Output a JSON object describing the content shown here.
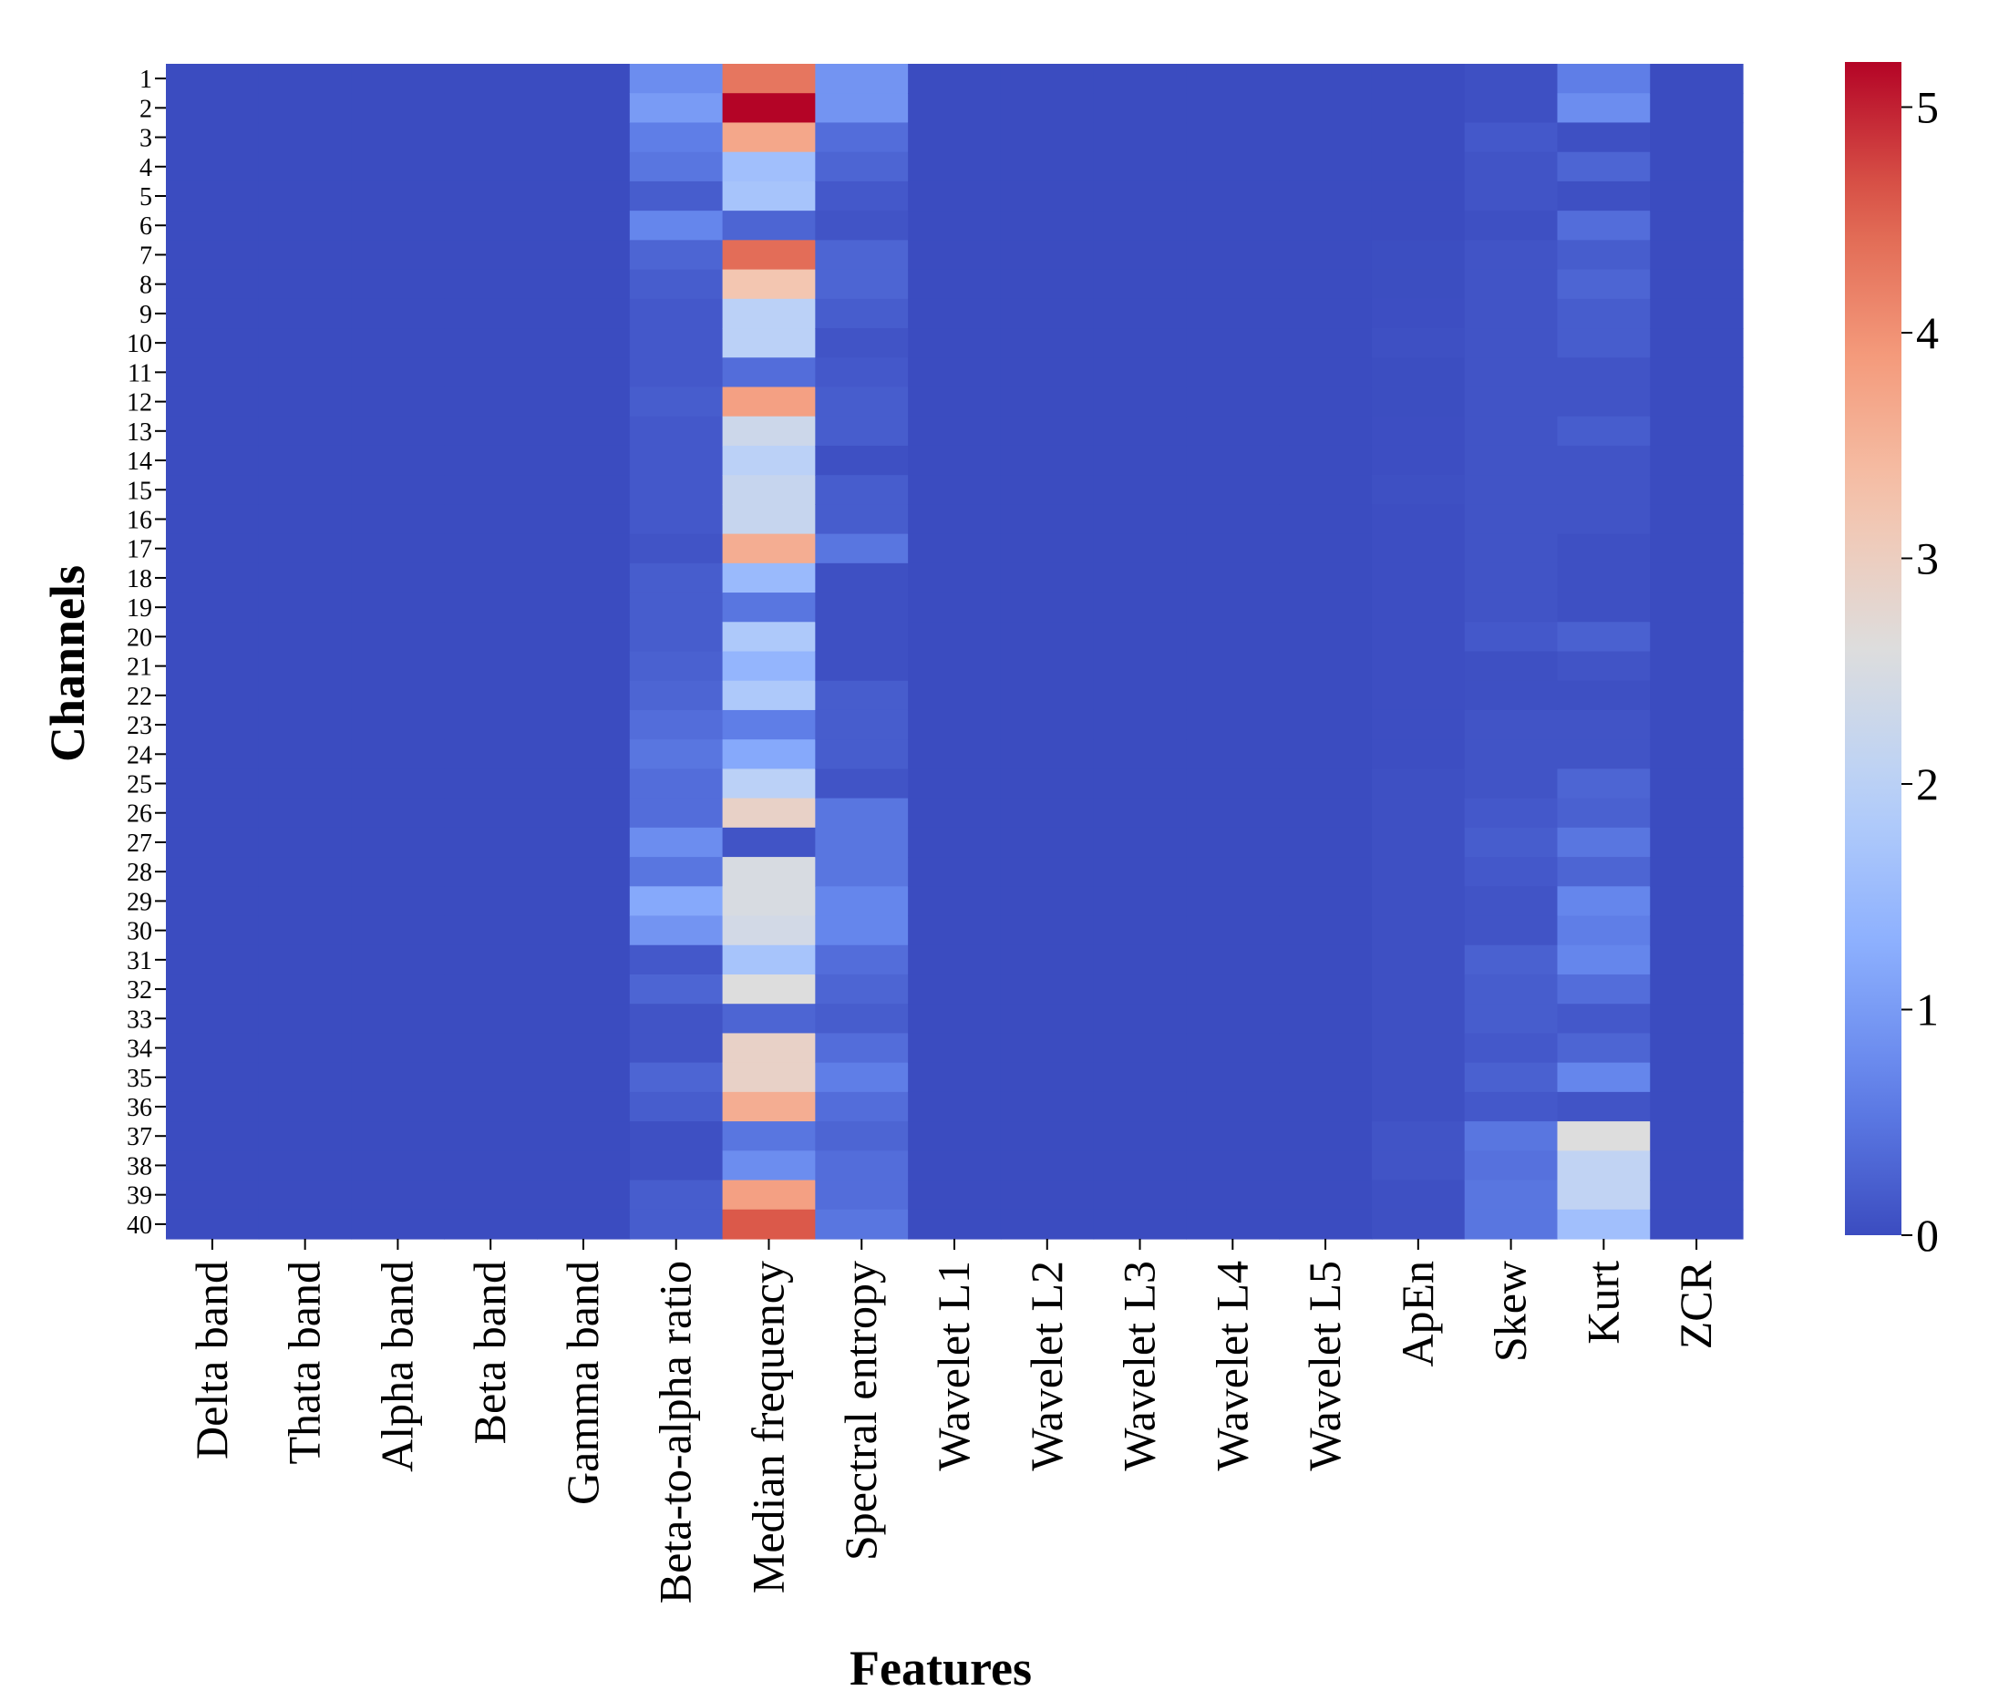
{
  "chart_data": {
    "type": "heatmap",
    "title": "",
    "xlabel": "Features",
    "ylabel": "Channels",
    "x": [
      "Delta band",
      "Thata band",
      "Alpha band",
      "Beta band",
      "Gamma band",
      "Beta-to-alpha ratio",
      "Median frequency",
      "Spectral entropy",
      "Wavelet L1",
      "Wavelet L2",
      "Wavelet L3",
      "Wavelet L4",
      "Wavelet L5",
      "ApEn",
      "Skew",
      "Kurt",
      "ZCR"
    ],
    "y": [
      "1",
      "2",
      "3",
      "4",
      "5",
      "6",
      "7",
      "8",
      "9",
      "10",
      "11",
      "12",
      "13",
      "14",
      "15",
      "16",
      "17",
      "18",
      "19",
      "20",
      "21",
      "22",
      "23",
      "24",
      "25",
      "26",
      "27",
      "28",
      "29",
      "30",
      "31",
      "32",
      "33",
      "34",
      "35",
      "36",
      "37",
      "38",
      "39",
      "40"
    ],
    "colormap": "coolwarm",
    "vlim": [
      0,
      5.2
    ],
    "colorbar_ticks": [
      0,
      1,
      2,
      3,
      4,
      5
    ],
    "grid": false,
    "columns": [
      {
        "name": "Delta band",
        "values": [
          0,
          0,
          0,
          0,
          0,
          0,
          0,
          0,
          0,
          0,
          0,
          0,
          0,
          0,
          0,
          0,
          0,
          0,
          0,
          0,
          0,
          0,
          0,
          0,
          0,
          0,
          0,
          0,
          0,
          0,
          0,
          0,
          0,
          0,
          0,
          0,
          0,
          0,
          0,
          0
        ]
      },
      {
        "name": "Thata band",
        "values": [
          0,
          0,
          0,
          0,
          0,
          0,
          0,
          0,
          0,
          0,
          0,
          0,
          0,
          0,
          0,
          0,
          0,
          0,
          0,
          0,
          0,
          0,
          0,
          0,
          0,
          0,
          0,
          0,
          0,
          0,
          0,
          0,
          0,
          0,
          0,
          0,
          0,
          0,
          0,
          0
        ]
      },
      {
        "name": "Alpha band",
        "values": [
          0,
          0,
          0,
          0,
          0,
          0,
          0,
          0,
          0,
          0,
          0,
          0,
          0,
          0,
          0,
          0,
          0,
          0,
          0,
          0,
          0,
          0,
          0,
          0,
          0,
          0,
          0,
          0,
          0,
          0,
          0,
          0,
          0,
          0,
          0,
          0,
          0,
          0,
          0,
          0
        ]
      },
      {
        "name": "Beta band",
        "values": [
          0,
          0,
          0,
          0,
          0,
          0,
          0,
          0,
          0,
          0,
          0,
          0,
          0,
          0,
          0,
          0,
          0,
          0,
          0,
          0,
          0,
          0,
          0,
          0,
          0,
          0,
          0,
          0,
          0,
          0,
          0,
          0,
          0,
          0,
          0,
          0,
          0,
          0,
          0,
          0
        ]
      },
      {
        "name": "Gamma band",
        "values": [
          0,
          0,
          0,
          0,
          0,
          0,
          0,
          0,
          0,
          0,
          0,
          0,
          0,
          0,
          0,
          0,
          0,
          0,
          0,
          0,
          0,
          0,
          0,
          0,
          0,
          0,
          0,
          0,
          0,
          0,
          0,
          0,
          0,
          0,
          0,
          0,
          0,
          0,
          0,
          0
        ]
      },
      {
        "name": "Beta-to-alpha ratio",
        "values": [
          0.8,
          1.0,
          0.6,
          0.5,
          0.2,
          0.7,
          0.3,
          0.2,
          0.15,
          0.15,
          0.15,
          0.2,
          0.15,
          0.15,
          0.15,
          0.15,
          0.1,
          0.2,
          0.2,
          0.2,
          0.25,
          0.3,
          0.4,
          0.5,
          0.4,
          0.4,
          0.8,
          0.5,
          1.2,
          0.9,
          0.15,
          0.3,
          0.1,
          0.1,
          0.3,
          0.2,
          0.05,
          0.05,
          0.2,
          0.2
        ]
      },
      {
        "name": "Median frequency",
        "values": [
          4.3,
          5.2,
          3.7,
          1.6,
          1.7,
          0.3,
          4.4,
          3.2,
          2.0,
          2.0,
          0.4,
          3.8,
          2.3,
          2.0,
          2.2,
          2.2,
          3.6,
          1.5,
          0.5,
          1.8,
          1.4,
          1.8,
          0.6,
          1.2,
          2.0,
          2.9,
          0.1,
          2.5,
          2.5,
          2.4,
          1.7,
          2.6,
          0.3,
          2.9,
          2.9,
          3.6,
          0.5,
          0.8,
          3.8,
          4.6
        ]
      },
      {
        "name": "Spectral entropy",
        "values": [
          0.9,
          0.9,
          0.4,
          0.3,
          0.15,
          0.1,
          0.3,
          0.3,
          0.2,
          0.1,
          0.15,
          0.2,
          0.2,
          0.05,
          0.2,
          0.2,
          0.5,
          0.05,
          0.05,
          0.05,
          0.05,
          0.2,
          0.2,
          0.2,
          0.1,
          0.5,
          0.5,
          0.5,
          0.7,
          0.7,
          0.4,
          0.3,
          0.2,
          0.4,
          0.6,
          0.4,
          0.3,
          0.4,
          0.4,
          0.5
        ]
      },
      {
        "name": "Wavelet L1",
        "values": [
          0,
          0,
          0,
          0,
          0,
          0,
          0,
          0,
          0,
          0,
          0,
          0,
          0,
          0,
          0,
          0,
          0,
          0,
          0,
          0,
          0,
          0,
          0,
          0,
          0,
          0,
          0,
          0,
          0,
          0,
          0,
          0,
          0,
          0,
          0,
          0,
          0,
          0,
          0,
          0
        ]
      },
      {
        "name": "Wavelet L2",
        "values": [
          0,
          0,
          0,
          0,
          0,
          0,
          0,
          0,
          0,
          0,
          0,
          0,
          0,
          0,
          0,
          0,
          0,
          0,
          0,
          0,
          0,
          0,
          0,
          0,
          0,
          0,
          0,
          0,
          0,
          0,
          0,
          0,
          0,
          0,
          0,
          0,
          0,
          0,
          0,
          0
        ]
      },
      {
        "name": "Wavelet L3",
        "values": [
          0,
          0,
          0,
          0,
          0,
          0,
          0,
          0,
          0,
          0,
          0,
          0,
          0,
          0,
          0,
          0,
          0,
          0,
          0,
          0,
          0,
          0,
          0,
          0,
          0,
          0,
          0,
          0,
          0,
          0,
          0,
          0,
          0,
          0,
          0,
          0,
          0,
          0,
          0,
          0
        ]
      },
      {
        "name": "Wavelet L4",
        "values": [
          0,
          0,
          0,
          0,
          0,
          0,
          0,
          0,
          0,
          0,
          0,
          0,
          0,
          0,
          0,
          0,
          0,
          0,
          0,
          0,
          0,
          0,
          0,
          0,
          0,
          0,
          0,
          0,
          0,
          0,
          0,
          0,
          0,
          0,
          0,
          0,
          0,
          0,
          0,
          0
        ]
      },
      {
        "name": "Wavelet L5",
        "values": [
          0,
          0,
          0,
          0,
          0,
          0,
          0,
          0,
          0,
          0,
          0,
          0,
          0,
          0,
          0,
          0,
          0,
          0,
          0,
          0,
          0,
          0,
          0,
          0,
          0,
          0,
          0,
          0,
          0,
          0,
          0,
          0,
          0,
          0,
          0,
          0,
          0,
          0,
          0,
          0
        ]
      },
      {
        "name": "ApEn",
        "values": [
          0,
          0,
          0,
          0,
          0,
          0,
          0.02,
          0.02,
          0.03,
          0.05,
          0.02,
          0.02,
          0.03,
          0.03,
          0.05,
          0.03,
          0.03,
          0.03,
          0.03,
          0.03,
          0.03,
          0.03,
          0.03,
          0.03,
          0.05,
          0.05,
          0.05,
          0.05,
          0.05,
          0.05,
          0.05,
          0.05,
          0.05,
          0.05,
          0.05,
          0.05,
          0.1,
          0.1,
          0.05,
          0.05
        ]
      },
      {
        "name": "Skew",
        "values": [
          0.05,
          0.05,
          0.15,
          0.1,
          0.1,
          0.05,
          0.1,
          0.1,
          0.1,
          0.1,
          0.1,
          0.1,
          0.1,
          0.1,
          0.1,
          0.1,
          0.1,
          0.1,
          0.1,
          0.15,
          0.05,
          0.05,
          0.1,
          0.1,
          0.1,
          0.15,
          0.2,
          0.15,
          0.1,
          0.1,
          0.25,
          0.2,
          0.2,
          0.15,
          0.25,
          0.15,
          0.5,
          0.45,
          0.5,
          0.5
        ]
      },
      {
        "name": "Kurt",
        "values": [
          0.6,
          0.8,
          0.05,
          0.3,
          0.05,
          0.4,
          0.2,
          0.3,
          0.2,
          0.2,
          0.1,
          0.1,
          0.2,
          0.1,
          0.1,
          0.1,
          0.05,
          0.05,
          0.05,
          0.25,
          0.1,
          0.05,
          0.1,
          0.1,
          0.3,
          0.25,
          0.5,
          0.3,
          0.7,
          0.6,
          0.7,
          0.4,
          0.15,
          0.3,
          0.7,
          0.1,
          2.6,
          2.1,
          2.1,
          1.6
        ]
      },
      {
        "name": "ZCR",
        "values": [
          0,
          0,
          0,
          0,
          0,
          0,
          0,
          0,
          0,
          0,
          0,
          0,
          0,
          0,
          0,
          0,
          0,
          0,
          0,
          0,
          0,
          0,
          0,
          0,
          0,
          0,
          0,
          0,
          0,
          0,
          0,
          0,
          0,
          0,
          0,
          0,
          0,
          0,
          0,
          0
        ]
      }
    ]
  }
}
